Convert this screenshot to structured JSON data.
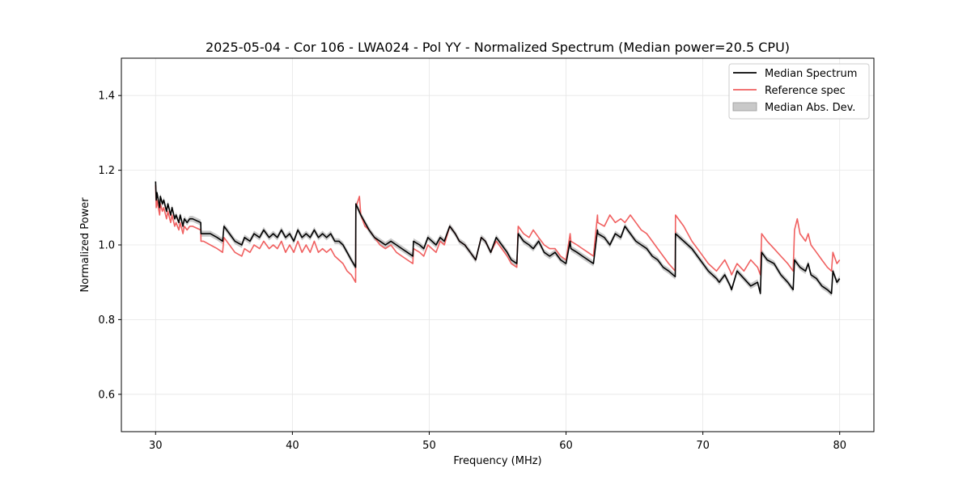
{
  "chart_data": {
    "type": "line",
    "title": "2025-05-04 - Cor 106 - LWA024 - Pol YY - Normalized Spectrum (Median power=20.5 CPU)",
    "xlabel": "Frequency (MHz)",
    "ylabel": "Normalized Power",
    "xlim": [
      27.5,
      82.5
    ],
    "ylim": [
      0.5,
      1.5
    ],
    "xticks": [
      30,
      40,
      50,
      60,
      70,
      80
    ],
    "yticks": [
      0.6,
      0.8,
      1.0,
      1.2,
      1.4
    ],
    "xtick_labels": [
      "30",
      "40",
      "50",
      "60",
      "70",
      "80"
    ],
    "ytick_labels": [
      "0.6",
      "0.8",
      "1.0",
      "1.2",
      "1.4"
    ],
    "grid": true,
    "legend_position": "top-right",
    "legend": {
      "median": "Median Spectrum",
      "reference": "Reference spec",
      "mad": "Median Abs. Dev."
    },
    "colors": {
      "median": "#000000",
      "reference": "#f06060",
      "mad": "#bbbbbb"
    },
    "mad_halfwidth": 0.008,
    "series": [
      {
        "name": "Median Spectrum",
        "x": [
          30.0,
          30.05,
          30.1,
          30.3,
          30.35,
          30.5,
          30.6,
          30.8,
          30.9,
          31.1,
          31.2,
          31.4,
          31.5,
          31.7,
          31.8,
          32.0,
          32.1,
          32.3,
          32.5,
          32.7,
          33.3,
          33.32,
          33.5,
          34.0,
          34.5,
          34.9,
          35.0,
          35.4,
          35.8,
          36.3,
          36.5,
          36.9,
          37.2,
          37.6,
          37.9,
          38.3,
          38.6,
          38.9,
          39.2,
          39.5,
          39.8,
          40.1,
          40.4,
          40.7,
          41.0,
          41.3,
          41.6,
          41.9,
          42.2,
          42.5,
          42.8,
          43.1,
          43.4,
          43.7,
          44.0,
          44.3,
          44.62,
          44.64,
          45.0,
          45.3,
          45.6,
          46.0,
          46.4,
          46.8,
          47.2,
          47.6,
          48.0,
          48.4,
          48.8,
          48.85,
          49.3,
          49.6,
          49.9,
          50.2,
          50.5,
          50.8,
          51.1,
          51.5,
          51.9,
          52.2,
          52.6,
          53.0,
          53.4,
          53.8,
          54.1,
          54.5,
          54.9,
          55.3,
          55.7,
          56.0,
          56.4,
          56.5,
          56.9,
          57.3,
          57.6,
          58.0,
          58.4,
          58.8,
          59.2,
          59.6,
          60.0,
          60.3,
          60.35,
          60.8,
          61.2,
          61.6,
          62.0,
          62.3,
          62.32,
          62.8,
          63.2,
          63.6,
          64.0,
          64.3,
          64.7,
          65.1,
          65.5,
          65.9,
          66.3,
          66.7,
          67.1,
          67.5,
          67.98,
          68.0,
          68.6,
          69.2,
          69.8,
          70.4,
          71.0,
          71.2,
          71.6,
          72.0,
          72.1,
          72.5,
          73.0,
          73.5,
          74.0,
          74.2,
          74.3,
          74.7,
          75.2,
          75.7,
          76.2,
          76.6,
          76.7,
          77.1,
          77.5,
          77.7,
          77.9,
          78.3,
          78.7,
          79.1,
          79.4,
          79.5,
          79.8,
          80.0
        ],
        "y": [
          1.17,
          1.12,
          1.14,
          1.1,
          1.13,
          1.11,
          1.12,
          1.09,
          1.11,
          1.08,
          1.1,
          1.07,
          1.08,
          1.06,
          1.08,
          1.05,
          1.07,
          1.06,
          1.07,
          1.07,
          1.06,
          1.03,
          1.03,
          1.03,
          1.02,
          1.01,
          1.05,
          1.03,
          1.01,
          1.0,
          1.02,
          1.01,
          1.03,
          1.02,
          1.04,
          1.02,
          1.03,
          1.02,
          1.04,
          1.02,
          1.03,
          1.01,
          1.04,
          1.02,
          1.03,
          1.02,
          1.04,
          1.02,
          1.03,
          1.02,
          1.03,
          1.01,
          1.01,
          1.0,
          0.98,
          0.96,
          0.94,
          1.11,
          1.08,
          1.06,
          1.04,
          1.02,
          1.01,
          1.0,
          1.01,
          1.0,
          0.99,
          0.98,
          0.97,
          1.01,
          1.0,
          0.99,
          1.02,
          1.01,
          1.0,
          1.02,
          1.01,
          1.05,
          1.03,
          1.01,
          1.0,
          0.98,
          0.96,
          1.02,
          1.01,
          0.98,
          1.02,
          1.0,
          0.98,
          0.96,
          0.95,
          1.03,
          1.01,
          1.0,
          0.99,
          1.01,
          0.98,
          0.97,
          0.98,
          0.96,
          0.95,
          1.01,
          0.99,
          0.98,
          0.97,
          0.96,
          0.95,
          1.04,
          1.03,
          1.02,
          1.0,
          1.03,
          1.02,
          1.05,
          1.03,
          1.01,
          1.0,
          0.99,
          0.97,
          0.96,
          0.94,
          0.93,
          0.915,
          1.03,
          1.01,
          0.99,
          0.96,
          0.93,
          0.91,
          0.9,
          0.92,
          0.89,
          0.88,
          0.93,
          0.91,
          0.89,
          0.9,
          0.87,
          0.98,
          0.96,
          0.95,
          0.92,
          0.9,
          0.88,
          0.96,
          0.94,
          0.93,
          0.95,
          0.92,
          0.91,
          0.89,
          0.88,
          0.87,
          0.93,
          0.9,
          0.91
        ]
      },
      {
        "name": "Reference spec",
        "x": [
          30.0,
          30.05,
          30.1,
          30.3,
          30.35,
          30.5,
          30.6,
          30.8,
          30.9,
          31.1,
          31.2,
          31.4,
          31.5,
          31.7,
          31.8,
          32.0,
          32.1,
          32.3,
          32.5,
          32.7,
          33.3,
          33.32,
          33.5,
          34.0,
          34.5,
          34.9,
          35.0,
          35.4,
          35.8,
          36.3,
          36.5,
          36.9,
          37.2,
          37.6,
          37.9,
          38.3,
          38.6,
          38.9,
          39.2,
          39.5,
          39.8,
          40.1,
          40.4,
          40.7,
          41.0,
          41.3,
          41.6,
          41.9,
          42.2,
          42.5,
          42.8,
          43.1,
          43.4,
          43.7,
          44.0,
          44.3,
          44.62,
          44.64,
          44.9,
          45.0,
          45.3,
          45.6,
          46.0,
          46.4,
          46.8,
          47.2,
          47.6,
          48.0,
          48.4,
          48.8,
          48.85,
          49.3,
          49.6,
          49.9,
          50.2,
          50.5,
          50.8,
          51.1,
          51.5,
          51.9,
          52.2,
          52.6,
          53.0,
          53.4,
          53.8,
          54.1,
          54.5,
          54.9,
          55.3,
          55.7,
          56.0,
          56.4,
          56.5,
          56.9,
          57.3,
          57.6,
          58.0,
          58.4,
          58.8,
          59.2,
          59.6,
          60.0,
          60.3,
          60.35,
          60.8,
          61.2,
          61.6,
          62.0,
          62.3,
          62.32,
          62.8,
          63.2,
          63.6,
          64.0,
          64.3,
          64.7,
          65.1,
          65.5,
          65.9,
          66.3,
          66.7,
          67.1,
          67.5,
          67.98,
          68.0,
          68.6,
          69.2,
          69.8,
          70.4,
          71.0,
          71.2,
          71.6,
          72.0,
          72.1,
          72.5,
          73.0,
          73.5,
          74.0,
          74.2,
          74.3,
          74.7,
          75.2,
          75.7,
          76.2,
          76.6,
          76.7,
          76.9,
          77.1,
          77.5,
          77.7,
          77.9,
          78.3,
          78.7,
          79.1,
          79.4,
          79.5,
          79.8,
          80.0
        ],
        "y": [
          1.16,
          1.1,
          1.12,
          1.08,
          1.11,
          1.09,
          1.1,
          1.07,
          1.09,
          1.06,
          1.08,
          1.05,
          1.06,
          1.04,
          1.06,
          1.03,
          1.05,
          1.04,
          1.05,
          1.05,
          1.04,
          1.01,
          1.01,
          1.0,
          0.99,
          0.98,
          1.02,
          1.0,
          0.98,
          0.97,
          0.99,
          0.98,
          1.0,
          0.99,
          1.01,
          0.99,
          1.0,
          0.99,
          1.01,
          0.98,
          1.0,
          0.98,
          1.01,
          0.98,
          1.0,
          0.98,
          1.01,
          0.98,
          0.99,
          0.98,
          0.99,
          0.97,
          0.96,
          0.95,
          0.93,
          0.92,
          0.9,
          1.1,
          1.13,
          1.08,
          1.05,
          1.04,
          1.02,
          1.0,
          0.99,
          1.0,
          0.98,
          0.97,
          0.96,
          0.95,
          0.99,
          0.98,
          0.97,
          1.0,
          0.99,
          0.98,
          1.01,
          1.0,
          1.05,
          1.03,
          1.01,
          1.0,
          0.98,
          0.96,
          1.02,
          1.01,
          0.98,
          1.01,
          0.99,
          0.97,
          0.95,
          0.94,
          1.05,
          1.03,
          1.02,
          1.04,
          1.02,
          1.0,
          0.99,
          0.99,
          0.97,
          0.96,
          1.03,
          1.01,
          1.0,
          0.99,
          0.98,
          0.97,
          1.08,
          1.06,
          1.05,
          1.08,
          1.06,
          1.07,
          1.06,
          1.08,
          1.06,
          1.04,
          1.03,
          1.01,
          0.99,
          0.97,
          0.95,
          0.93,
          1.08,
          1.05,
          1.01,
          0.98,
          0.95,
          0.93,
          0.94,
          0.96,
          0.93,
          0.92,
          0.95,
          0.93,
          0.96,
          0.94,
          0.92,
          1.03,
          1.01,
          0.99,
          0.97,
          0.95,
          0.93,
          1.04,
          1.07,
          1.03,
          1.01,
          1.03,
          1.0,
          0.98,
          0.96,
          0.94,
          0.93,
          0.98,
          0.95,
          0.96
        ]
      }
    ]
  }
}
